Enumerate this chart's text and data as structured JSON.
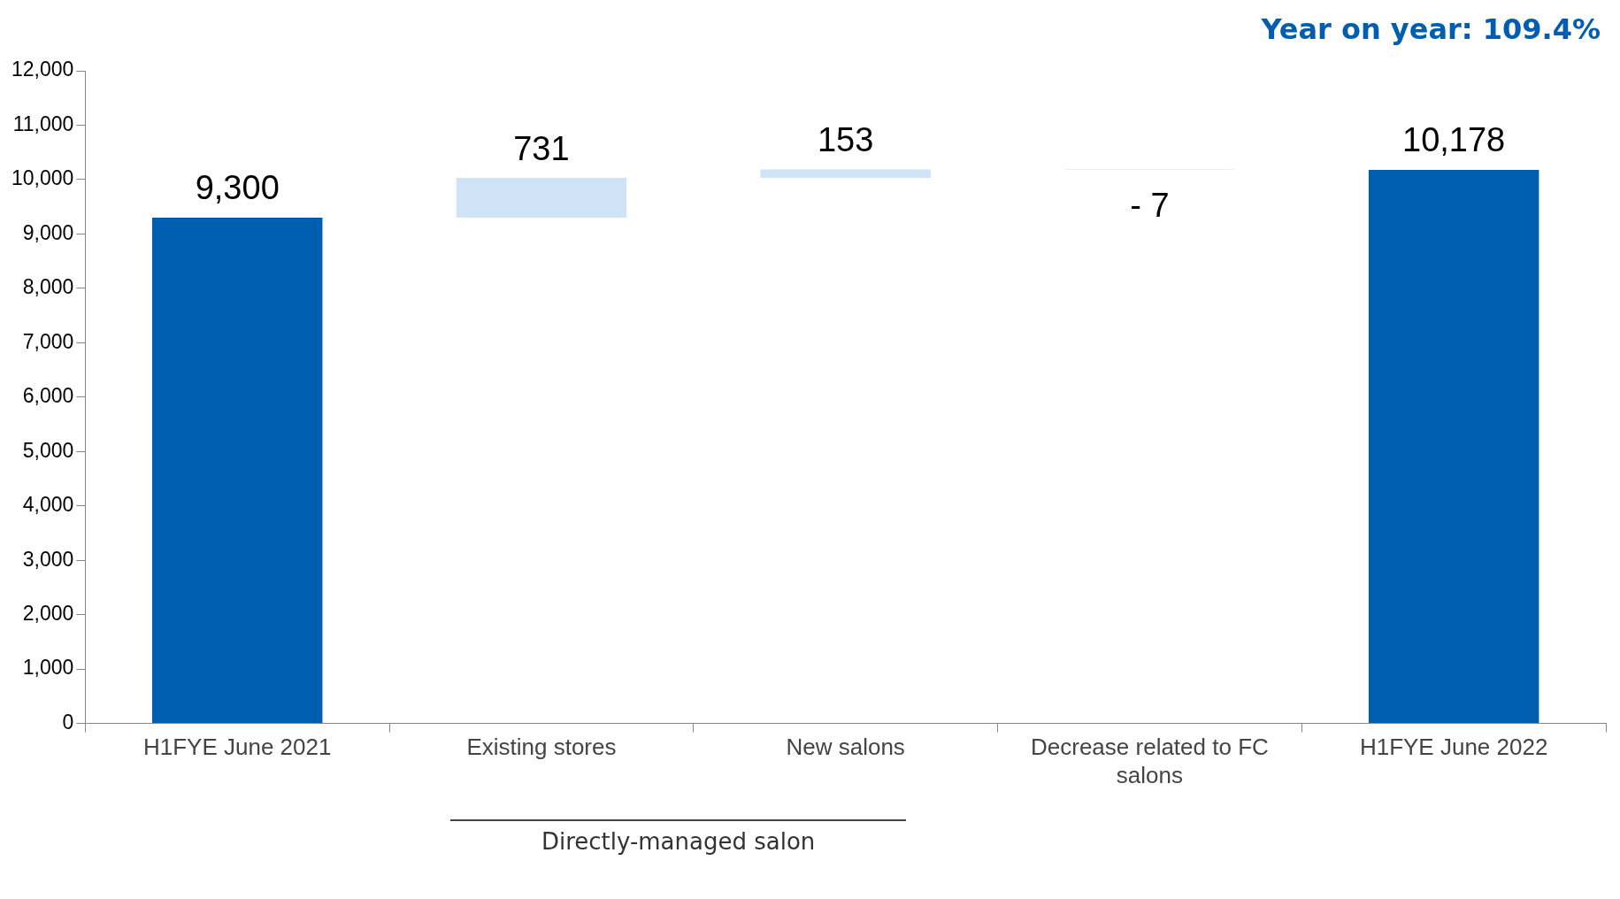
{
  "chart_data": {
    "type": "bar",
    "categories": [
      "H1FYE June 2021",
      "Existing stores",
      "New salons",
      "Decrease related to FC salons",
      "H1FYE June 2022"
    ],
    "values": [
      9300,
      731,
      153,
      -7,
      10178
    ],
    "base": [
      0,
      9300,
      10031,
      10184,
      0
    ],
    "colors": [
      "#005eb0",
      "#cfe4f7",
      "#cfe4f7",
      "#cfe4f7",
      "#005eb0"
    ],
    "value_labels": [
      "9,300",
      "731",
      "153",
      "- 7",
      "10,178"
    ],
    "ylim": [
      0,
      12000
    ],
    "yticks": [
      {
        "value": 0,
        "label": "0"
      },
      {
        "value": 1000,
        "label": "1,000"
      },
      {
        "value": 2000,
        "label": "2,000"
      },
      {
        "value": 3000,
        "label": "3,000"
      },
      {
        "value": 4000,
        "label": "4,000"
      },
      {
        "value": 5000,
        "label": "5,000"
      },
      {
        "value": 6000,
        "label": "6,000"
      },
      {
        "value": 7000,
        "label": "7,000"
      },
      {
        "value": 8000,
        "label": "8,000"
      },
      {
        "value": 9000,
        "label": "9,000"
      },
      {
        "value": 10000,
        "label": "10,000"
      },
      {
        "value": 11000,
        "label": "11,000"
      },
      {
        "value": 12000,
        "label": "12,000"
      }
    ],
    "annotations": [
      "Year on year: 109.4%",
      "Directly-managed salon"
    ],
    "grid": false,
    "legend": false
  }
}
